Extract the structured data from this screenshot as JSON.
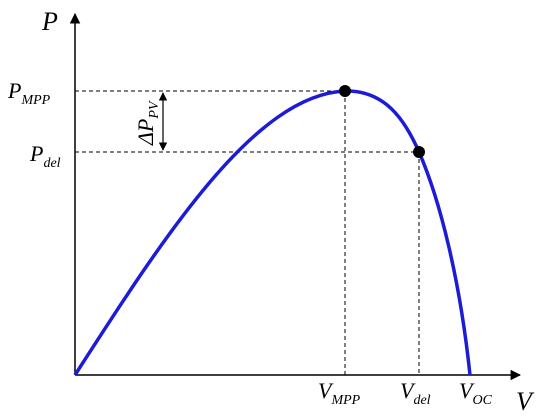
{
  "axes": {
    "y_label": "P",
    "x_label": "V"
  },
  "y_labels": [
    {
      "main": "P",
      "sub": "MPP"
    },
    {
      "main": "P",
      "sub": "del"
    }
  ],
  "x_labels": [
    {
      "main": "V",
      "sub": "MPP"
    },
    {
      "main": "V",
      "sub": "del"
    },
    {
      "main": "V",
      "sub": "OC"
    }
  ],
  "delta_label": {
    "main": "ΔP",
    "sub": "PV"
  }
}
